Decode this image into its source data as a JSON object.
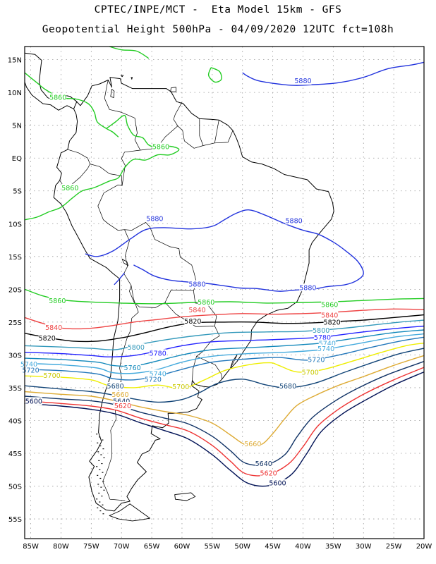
{
  "header": {
    "line1": "CPTEC/INPE/MCT -  Eta Model 15km - GFS",
    "line2": "Geopotential Height 500hPa - 04/09/2020 12UTC fct=108h"
  },
  "axes": {
    "lat_labels": [
      "15N",
      "10N",
      "5N",
      "EQ",
      "5S",
      "10S",
      "15S",
      "20S",
      "25S",
      "30S",
      "35S",
      "40S",
      "45S",
      "50S",
      "55S"
    ],
    "lon_labels": [
      "85W",
      "80W",
      "75W",
      "70W",
      "65W",
      "60W",
      "55W",
      "50W",
      "45W",
      "40W",
      "35W",
      "30W",
      "25W",
      "20W"
    ],
    "lat_range": [
      -58,
      17
    ],
    "lon_range": [
      -86,
      -20
    ]
  },
  "contour_colors": {
    "5880": "#2233dd",
    "5860": "#22cc22",
    "5840": "#ee4444",
    "5820": "#000000",
    "5800": "#3399bb",
    "5780": "#2222ff",
    "5760": "#1188bb",
    "5740": "#44aadd",
    "5720": "#2277bb",
    "5700": "#eeee00",
    "5680": "#114477",
    "5660": "#ddaa33",
    "5640": "#113366",
    "5620": "#ee3333",
    "5600": "#001155"
  },
  "contour_labels": [
    {
      "text": "5880",
      "lon": -40.0,
      "lat": 11.5
    },
    {
      "text": "5860",
      "lon": -80.5,
      "lat": 9.0
    },
    {
      "text": "5860",
      "lon": -63.5,
      "lat": 1.5
    },
    {
      "text": "5860",
      "lon": -78.5,
      "lat": -4.8
    },
    {
      "text": "5880",
      "lon": -64.5,
      "lat": -9.5
    },
    {
      "text": "5880",
      "lon": -41.5,
      "lat": -9.8
    },
    {
      "text": "5880",
      "lon": -57.5,
      "lat": -19.5
    },
    {
      "text": "5880",
      "lon": -39.2,
      "lat": -20.0
    },
    {
      "text": "5860",
      "lon": -80.6,
      "lat": -22.0
    },
    {
      "text": "5860",
      "lon": -56.0,
      "lat": -22.2
    },
    {
      "text": "5860",
      "lon": -35.6,
      "lat": -22.6
    },
    {
      "text": "5840",
      "lon": -57.5,
      "lat": -23.4
    },
    {
      "text": "5840",
      "lon": -35.6,
      "lat": -24.2
    },
    {
      "text": "5840",
      "lon": -81.2,
      "lat": -26.1
    },
    {
      "text": "5820",
      "lon": -58.2,
      "lat": -25.1
    },
    {
      "text": "5820",
      "lon": -35.2,
      "lat": -25.3
    },
    {
      "text": "5820",
      "lon": -82.3,
      "lat": -27.7
    },
    {
      "text": "5800",
      "lon": -37.0,
      "lat": -26.5
    },
    {
      "text": "5780",
      "lon": -36.8,
      "lat": -27.6
    },
    {
      "text": "5740",
      "lon": -36.0,
      "lat": -28.5
    },
    {
      "text": "5800",
      "lon": -67.6,
      "lat": -29.1
    },
    {
      "text": "5740",
      "lon": -36.2,
      "lat": -29.3
    },
    {
      "text": "5780",
      "lon": -64.0,
      "lat": -30.0
    },
    {
      "text": "5720",
      "lon": -37.8,
      "lat": -31.0
    },
    {
      "text": "5740",
      "lon": -85.3,
      "lat": -31.7
    },
    {
      "text": "5760",
      "lon": -68.2,
      "lat": -32.2
    },
    {
      "text": "5720",
      "lon": -85.0,
      "lat": -32.6
    },
    {
      "text": "5700",
      "lon": -38.8,
      "lat": -32.9
    },
    {
      "text": "5740",
      "lon": -64.0,
      "lat": -33.1
    },
    {
      "text": "5700",
      "lon": -81.5,
      "lat": -33.4
    },
    {
      "text": "5720",
      "lon": -64.8,
      "lat": -34.0
    },
    {
      "text": "5680",
      "lon": -71.0,
      "lat": -35.0
    },
    {
      "text": "5700",
      "lon": -60.2,
      "lat": -35.1
    },
    {
      "text": "5680",
      "lon": -42.5,
      "lat": -35.0
    },
    {
      "text": "5660",
      "lon": -70.2,
      "lat": -36.3
    },
    {
      "text": "5640",
      "lon": -70.0,
      "lat": -37.3
    },
    {
      "text": "5620",
      "lon": -69.8,
      "lat": -38.0
    },
    {
      "text": "5600",
      "lon": -84.5,
      "lat": -37.3
    },
    {
      "text": "5660",
      "lon": -48.3,
      "lat": -43.8
    },
    {
      "text": "5640",
      "lon": -46.5,
      "lat": -46.8
    },
    {
      "text": "5620",
      "lon": -45.7,
      "lat": -48.3
    },
    {
      "text": "5600",
      "lon": -44.2,
      "lat": -49.8
    }
  ]
}
